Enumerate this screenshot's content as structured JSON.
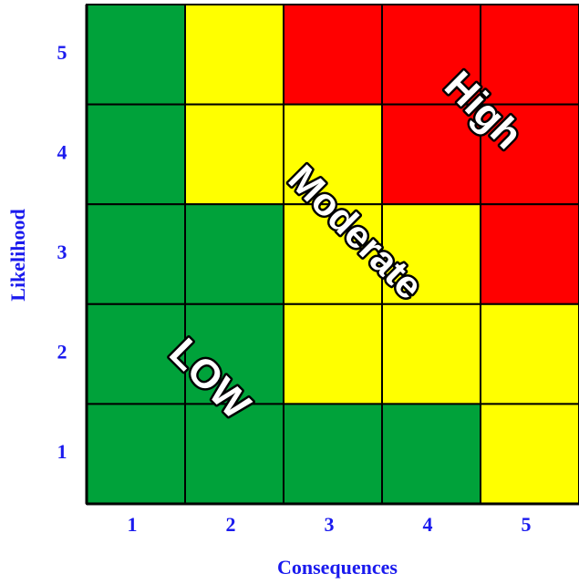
{
  "matrix": {
    "rows": [
      {
        "likelihood": 5,
        "cells": [
          "#00a23a",
          "#ffff00",
          "#ff0000",
          "#ff0000",
          "#ff0000"
        ]
      },
      {
        "likelihood": 4,
        "cells": [
          "#00a23a",
          "#ffff00",
          "#ffff00",
          "#ff0000",
          "#ff0000"
        ]
      },
      {
        "likelihood": 3,
        "cells": [
          "#00a23a",
          "#00a23a",
          "#ffff00",
          "#ffff00",
          "#ff0000"
        ]
      },
      {
        "likelihood": 2,
        "cells": [
          "#00a23a",
          "#00a23a",
          "#ffff00",
          "#ffff00",
          "#ffff00"
        ]
      },
      {
        "likelihood": 1,
        "cells": [
          "#00a23a",
          "#00a23a",
          "#00a23a",
          "#00a23a",
          "#ffff00"
        ]
      }
    ],
    "consequences": [
      1,
      2,
      3,
      4,
      5
    ],
    "x_label": "Consequences",
    "y_label": "Likelihood",
    "zones": {
      "high": "High",
      "moderate": "Moderate",
      "low": "LOW"
    }
  }
}
